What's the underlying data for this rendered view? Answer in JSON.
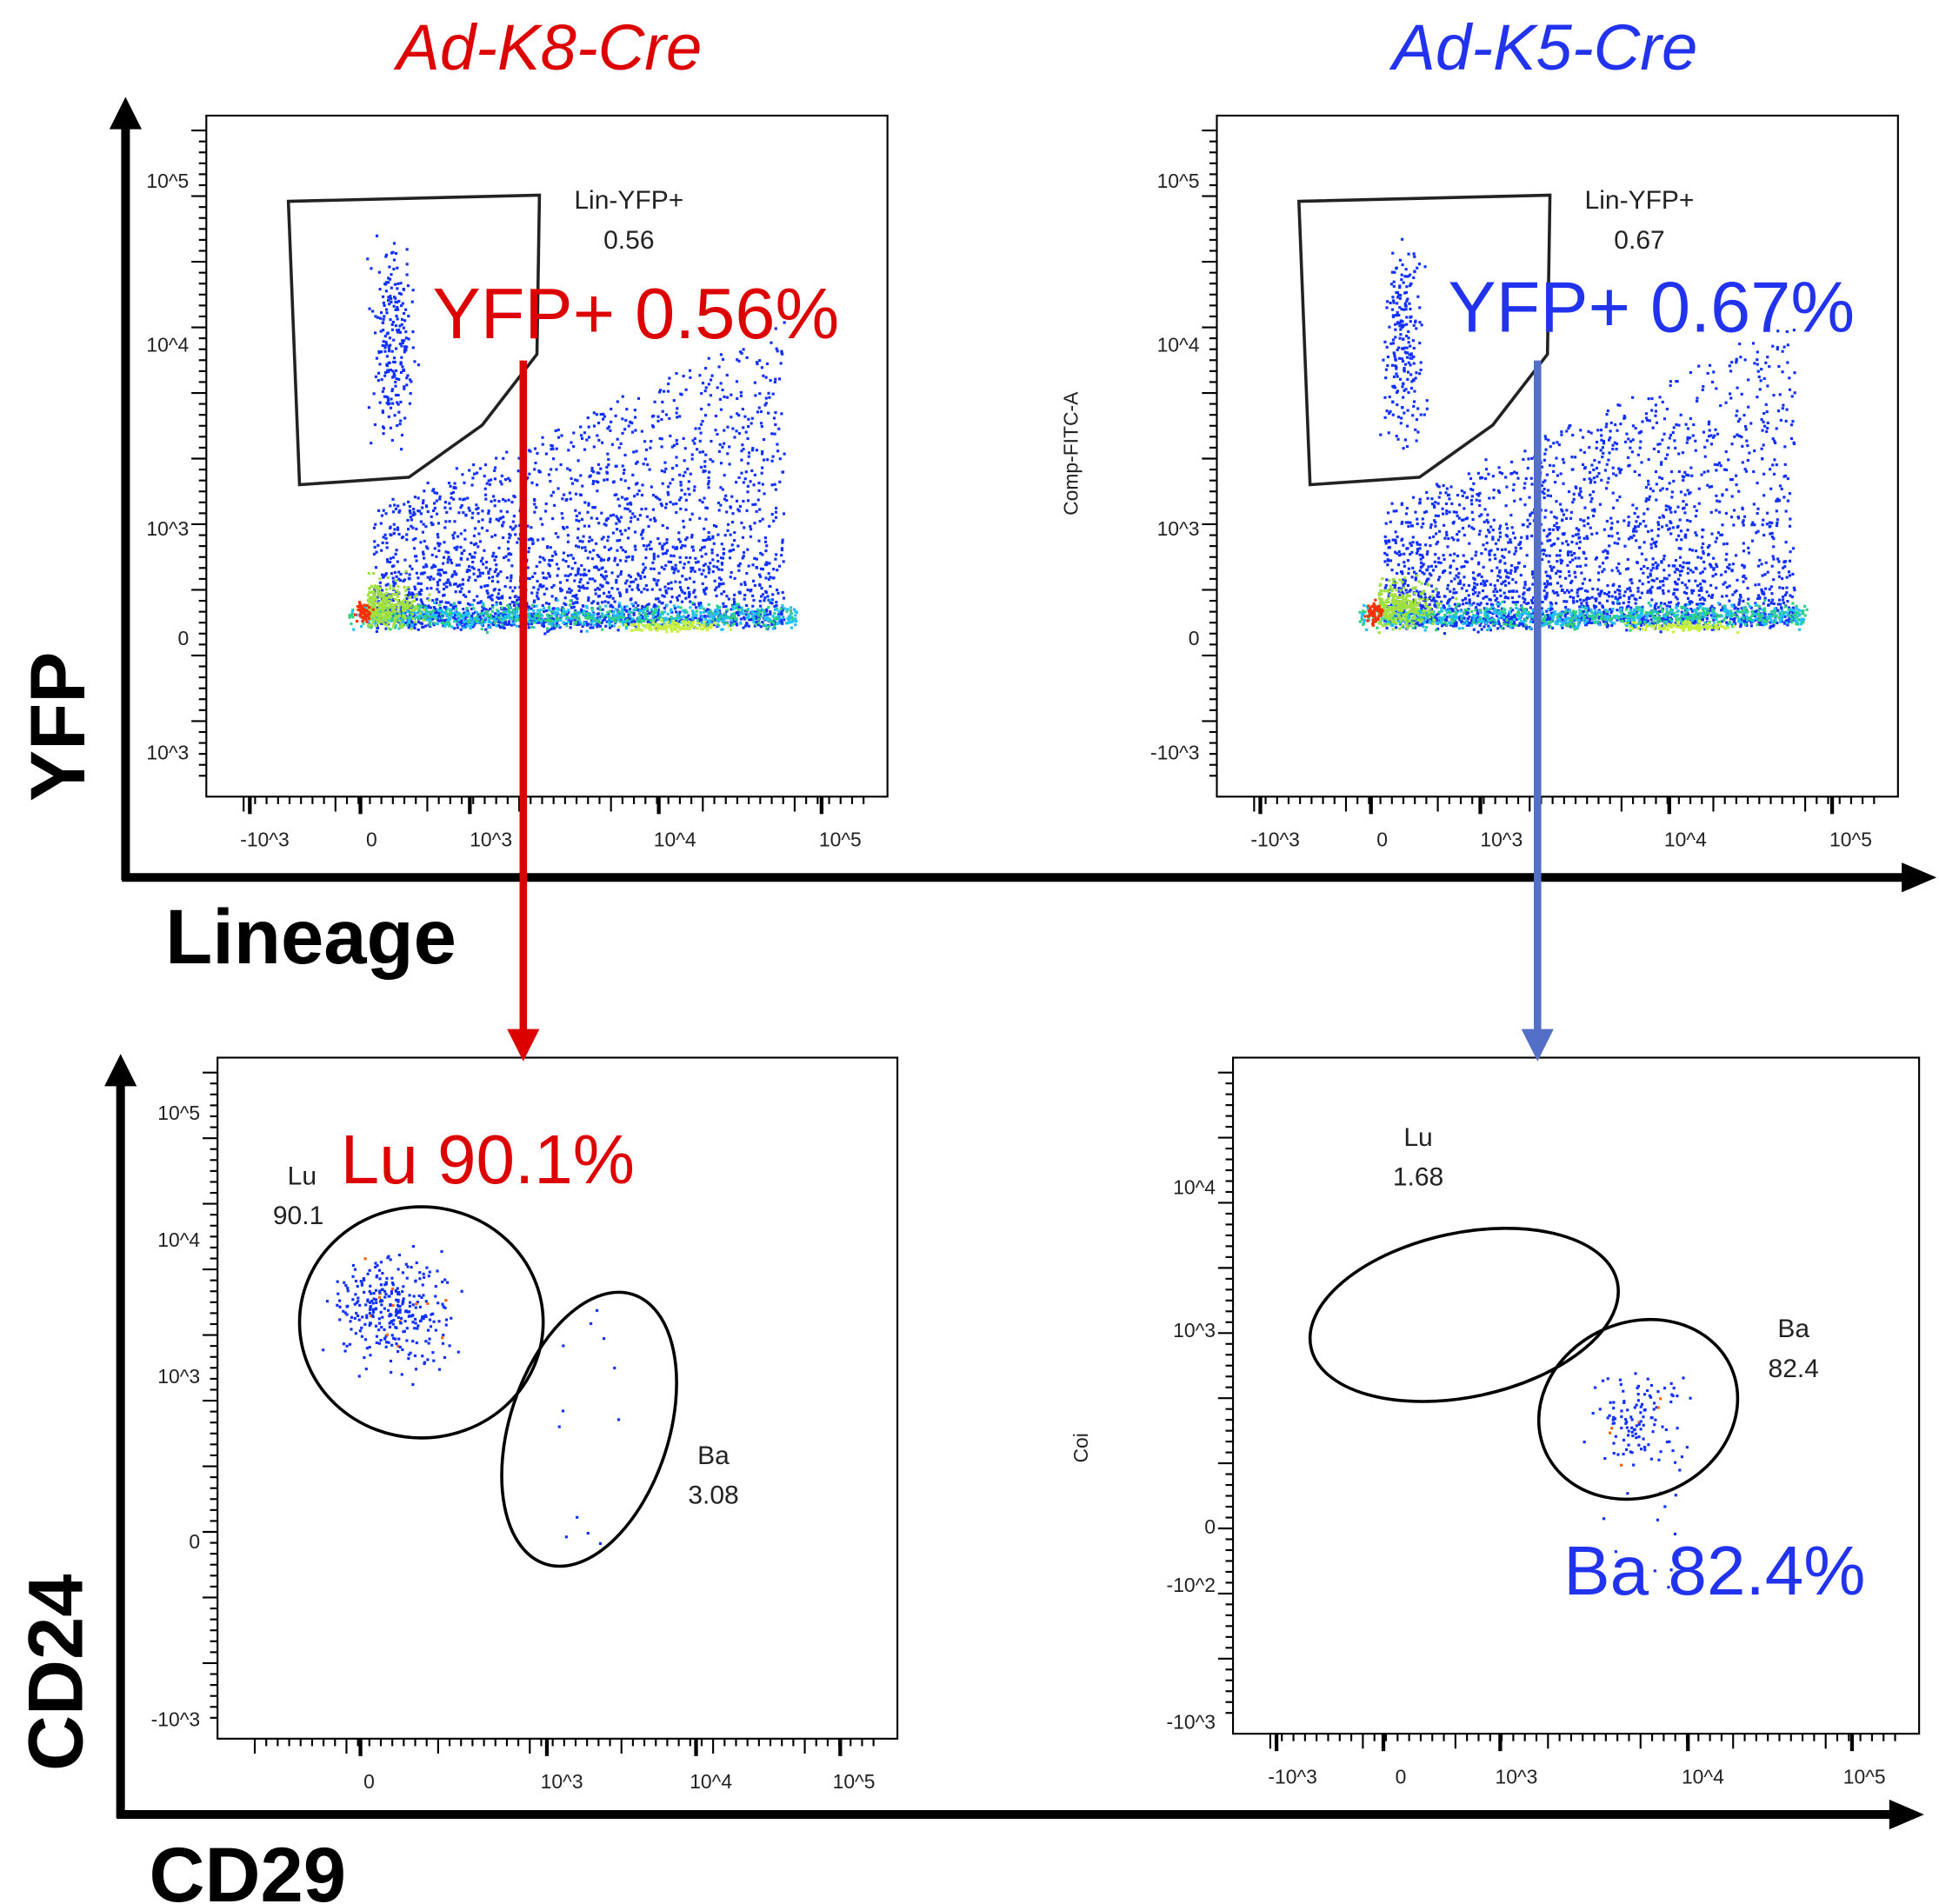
{
  "titles": {
    "left": "Ad-K8-Cre",
    "right": "Ad-K5-Cre",
    "left_color": "#dd0000",
    "right_color": "#2233ee"
  },
  "axis_labels": {
    "top_y": "YFP",
    "top_x": "Lineage",
    "bottom_y": "CD24",
    "bottom_x": "CD29"
  },
  "chart_data": [
    {
      "type": "scatter",
      "panel": "top-left",
      "series_style": "pseudocolor density",
      "ylabel": "",
      "xlabel": "",
      "x_ticks": [
        "-10^3",
        "0",
        "10^3",
        "10^4",
        "10^5"
      ],
      "y_ticks": [
        "10^5",
        "10^4",
        "10^3",
        "0",
        "10^3"
      ],
      "gate": {
        "name": "Lin-YFP+",
        "value": "0.56",
        "shape": "polygon"
      },
      "annotation": "YFP+ 0.56%"
    },
    {
      "type": "scatter",
      "panel": "top-right",
      "series_style": "pseudocolor density",
      "ylabel": "Comp-FITC-A",
      "xlabel": "",
      "x_ticks": [
        "-10^3",
        "0",
        "10^3",
        "10^4",
        "10^5"
      ],
      "y_ticks": [
        "10^5",
        "10^4",
        "10^3",
        "0",
        "-10^3"
      ],
      "gate": {
        "name": "Lin-YFP+",
        "value": "0.67",
        "shape": "polygon"
      },
      "annotation": "YFP+ 0.67%"
    },
    {
      "type": "scatter",
      "panel": "bottom-left",
      "ylabel": "",
      "xlabel": "",
      "x_ticks": [
        "0",
        "10^3",
        "10^4",
        "10^5"
      ],
      "y_ticks": [
        "10^5",
        "10^4",
        "10^3",
        "0",
        "-10^3"
      ],
      "gates": [
        {
          "name": "Lu",
          "value": "90.1"
        },
        {
          "name": "Ba",
          "value": "3.08"
        }
      ],
      "annotation": "Lu 90.1%"
    },
    {
      "type": "scatter",
      "panel": "bottom-right",
      "ylabel": "Coi",
      "xlabel": "",
      "x_ticks": [
        "-10^3",
        "0",
        "10^3",
        "10^4",
        "10^5"
      ],
      "y_ticks": [
        "10^4",
        "10^3",
        "0",
        "-10^2",
        "-10^3"
      ],
      "gates": [
        {
          "name": "Lu",
          "value": "1.68"
        },
        {
          "name": "Ba",
          "value": "82.4"
        }
      ],
      "annotation": "Ba 82.4%"
    }
  ],
  "arrow_colors": {
    "left": "#dd0000",
    "right": "#5470c6"
  }
}
